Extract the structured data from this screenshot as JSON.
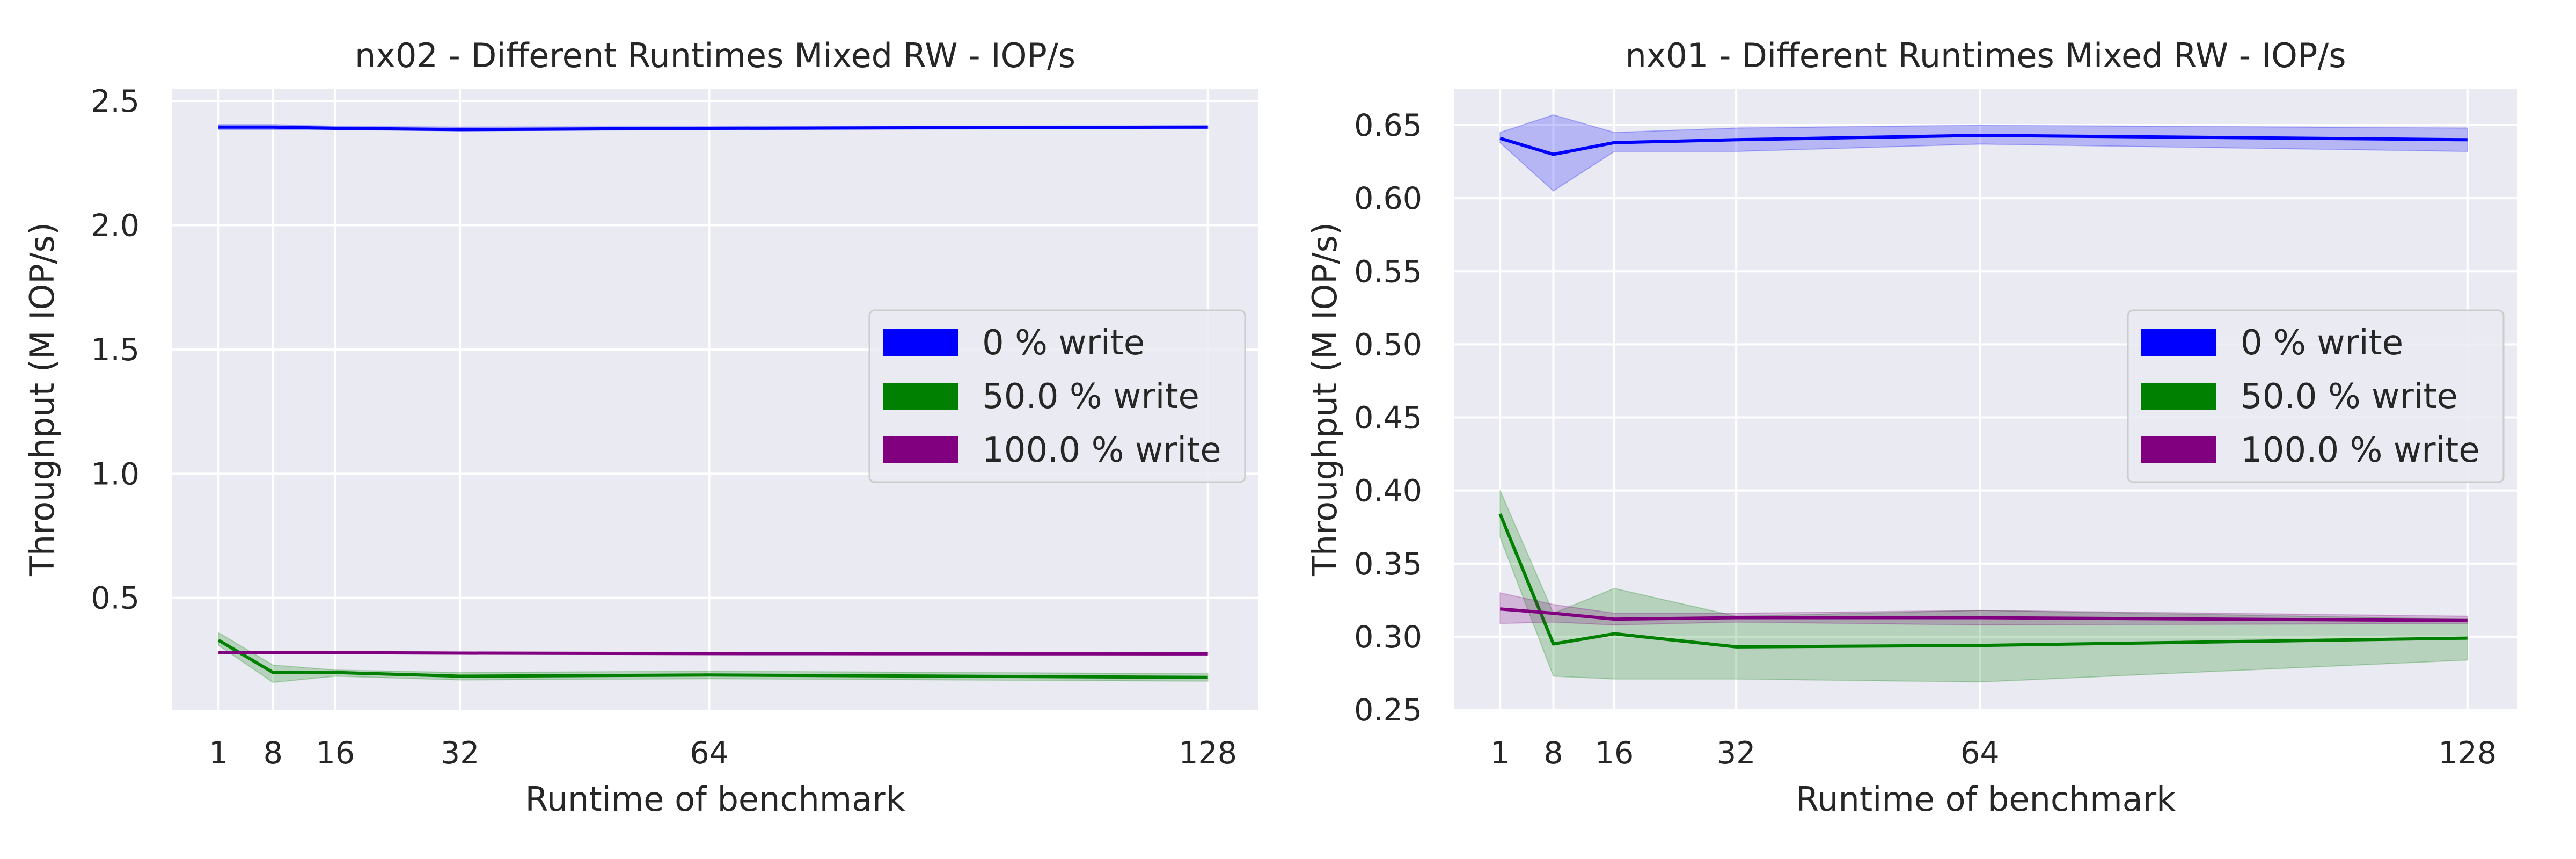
{
  "chart_data": [
    {
      "type": "line",
      "title": "nx02 - Different Runtimes Mixed RW - IOP/s",
      "xlabel": "Runtime of benchmark",
      "ylabel": "Throughput (M IOP/s)",
      "x": [
        1,
        8,
        16,
        32,
        64,
        128
      ],
      "xticks": [
        1,
        8,
        16,
        32,
        64,
        128
      ],
      "xlim": [
        -5,
        134.5
      ],
      "yticks": [
        0.5,
        1.0,
        1.5,
        2.0,
        2.5
      ],
      "ylim": [
        0.05,
        2.55
      ],
      "grid": true,
      "legend_position": "center-right",
      "series": [
        {
          "name": "0 % write",
          "color": "#0000ff",
          "values": [
            2.395,
            2.395,
            2.39,
            2.385,
            2.39,
            2.395
          ],
          "lower": [
            2.385,
            2.385,
            2.385,
            2.38,
            2.385,
            2.39
          ],
          "upper": [
            2.405,
            2.405,
            2.398,
            2.395,
            2.397,
            2.4
          ]
        },
        {
          "name": "50.0 % write",
          "color": "#008000",
          "values": [
            0.33,
            0.2,
            0.2,
            0.185,
            0.19,
            0.18
          ],
          "lower": [
            0.31,
            0.16,
            0.185,
            0.17,
            0.175,
            0.165
          ],
          "upper": [
            0.36,
            0.23,
            0.21,
            0.2,
            0.205,
            0.195
          ]
        },
        {
          "name": "100.0 % write",
          "color": "#800080",
          "values": [
            0.28,
            0.28,
            0.28,
            0.278,
            0.276,
            0.275
          ],
          "lower": [
            0.275,
            0.275,
            0.275,
            0.274,
            0.272,
            0.272
          ],
          "upper": [
            0.285,
            0.285,
            0.285,
            0.282,
            0.28,
            0.279
          ]
        }
      ]
    },
    {
      "type": "line",
      "title": "nx01 - Different Runtimes Mixed RW - IOP/s",
      "xlabel": "Runtime of benchmark",
      "ylabel": "Throughput (M IOP/s)",
      "x": [
        1,
        8,
        16,
        32,
        64,
        128
      ],
      "xticks": [
        1,
        8,
        16,
        32,
        64,
        128
      ],
      "xlim": [
        -5,
        134.5
      ],
      "yticks": [
        0.25,
        0.3,
        0.35,
        0.4,
        0.45,
        0.5,
        0.55,
        0.6,
        0.65
      ],
      "ylim": [
        0.25,
        0.675
      ],
      "grid": true,
      "legend_position": "center-right",
      "series": [
        {
          "name": "0 % write",
          "color": "#0000ff",
          "values": [
            0.641,
            0.63,
            0.638,
            0.64,
            0.643,
            0.64
          ],
          "lower": [
            0.638,
            0.605,
            0.632,
            0.632,
            0.637,
            0.632
          ],
          "upper": [
            0.645,
            0.657,
            0.645,
            0.648,
            0.65,
            0.648
          ]
        },
        {
          "name": "50.0 % write",
          "color": "#008000",
          "values": [
            0.384,
            0.295,
            0.302,
            0.293,
            0.294,
            0.299
          ],
          "lower": [
            0.368,
            0.273,
            0.271,
            0.271,
            0.269,
            0.284
          ],
          "upper": [
            0.4,
            0.316,
            0.333,
            0.314,
            0.318,
            0.312
          ]
        },
        {
          "name": "100.0 % write",
          "color": "#800080",
          "values": [
            0.319,
            0.316,
            0.312,
            0.313,
            0.313,
            0.311
          ],
          "lower": [
            0.309,
            0.31,
            0.308,
            0.31,
            0.308,
            0.309
          ],
          "upper": [
            0.33,
            0.322,
            0.316,
            0.316,
            0.318,
            0.314
          ]
        }
      ]
    }
  ]
}
